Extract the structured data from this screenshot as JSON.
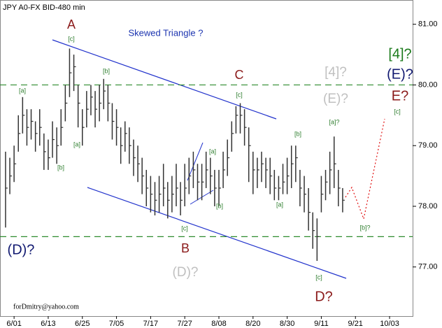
{
  "chart_data": {
    "type": "ohlc",
    "title": "JPY A0-FX BID-480 min",
    "color": "#333333",
    "high": [
      78.9,
      78.8,
      79.0,
      79.5,
      79.8,
      79.6,
      79.6,
      79.4,
      79.6,
      79.2,
      79.1,
      79.4,
      79.3,
      79.6,
      80.0,
      80.6,
      80.5,
      80.0,
      79.6,
      79.9,
      80.0,
      79.9,
      80.0,
      80.1,
      80.0,
      79.7,
      79.6,
      79.3,
      79.4,
      79.3,
      79.1,
      79.0,
      78.8,
      78.6,
      78.5,
      78.4,
      78.5,
      78.7,
      78.4,
      78.5,
      78.7,
      78.4,
      78.7,
      78.8,
      78.9,
      78.7,
      78.7,
      78.9,
      78.8,
      78.6,
      78.6,
      78.9,
      79.1,
      79.4,
      79.65,
      79.7,
      79.6,
      79.3,
      78.9,
      78.8,
      78.9,
      78.8,
      78.8,
      78.6,
      78.5,
      78.7,
      78.8,
      79.0,
      79.0,
      78.6,
      78.5,
      78.3,
      77.9,
      77.8,
      78.5,
      78.6,
      78.9,
      79.15,
      78.6,
      78.3
    ],
    "low": [
      77.65,
      78.2,
      78.4,
      78.9,
      79.2,
      79.0,
      79.1,
      78.9,
      79.0,
      78.6,
      78.6,
      78.8,
      78.7,
      79.0,
      79.4,
      79.8,
      79.9,
      79.3,
      79.0,
      79.3,
      79.5,
      79.3,
      79.4,
      79.6,
      79.4,
      79.1,
      79.0,
      78.7,
      78.9,
      78.7,
      78.5,
      78.4,
      78.2,
      78.0,
      77.9,
      77.85,
      77.9,
      78.0,
      77.8,
      77.9,
      78.0,
      77.85,
      78.0,
      78.2,
      78.3,
      78.1,
      78.1,
      78.3,
      78.2,
      78.0,
      78.0,
      78.3,
      78.5,
      78.9,
      79.2,
      79.2,
      79.0,
      78.4,
      78.2,
      78.3,
      78.4,
      78.3,
      78.2,
      78.1,
      78.1,
      78.2,
      78.2,
      78.3,
      78.4,
      78.0,
      77.9,
      77.6,
      77.3,
      77.1,
      77.9,
      78.1,
      78.2,
      78.3,
      78.0,
      77.9
    ],
    "close": [
      78.3,
      78.5,
      78.7,
      79.2,
      79.5,
      79.3,
      79.4,
      79.2,
      79.3,
      78.9,
      78.8,
      79.1,
      79.0,
      79.3,
      79.7,
      80.2,
      80.3,
      79.7,
      79.3,
      79.6,
      79.8,
      79.6,
      79.7,
      79.9,
      79.7,
      79.4,
      79.3,
      79.0,
      79.2,
      79.0,
      78.8,
      78.7,
      78.5,
      78.3,
      78.2,
      78.1,
      78.2,
      78.3,
      78.1,
      78.2,
      78.3,
      78.1,
      78.3,
      78.5,
      78.6,
      78.4,
      78.4,
      78.6,
      78.5,
      78.3,
      78.3,
      78.6,
      78.8,
      79.2,
      79.5,
      79.5,
      79.3,
      79.0,
      78.6,
      78.6,
      78.7,
      78.6,
      78.5,
      78.3,
      78.3,
      78.4,
      78.5,
      78.7,
      78.8,
      78.3,
      78.2,
      77.9,
      77.6,
      77.5,
      78.2,
      78.4,
      78.6,
      78.7,
      78.3,
      78.1
    ],
    "xlim": [
      -1.3,
      95.4
    ],
    "xticks": [
      {
        "value": 2,
        "label": "6/01"
      },
      {
        "value": 10,
        "label": "6/13"
      },
      {
        "value": 18,
        "label": "6/25"
      },
      {
        "value": 26,
        "label": "7/05"
      },
      {
        "value": 34,
        "label": "7/17"
      },
      {
        "value": 42,
        "label": "7/27"
      },
      {
        "value": 50,
        "label": "8/08"
      },
      {
        "value": 58,
        "label": "8/20"
      },
      {
        "value": 66,
        "label": "8/30"
      },
      {
        "value": 74,
        "label": "9/11"
      },
      {
        "value": 82,
        "label": "9/21"
      },
      {
        "value": 90,
        "label": "10/03"
      }
    ],
    "ylim": [
      76.19,
      81.4
    ],
    "yticks": [
      {
        "value": 77,
        "label": "77.00"
      },
      {
        "value": 78,
        "label": "78.00"
      },
      {
        "value": 79,
        "label": "79.00"
      },
      {
        "value": 80,
        "label": "80.00"
      },
      {
        "value": 81,
        "label": "81.00"
      }
    ],
    "hlines": [
      80,
      77.5
    ],
    "hline_color": "#2e8b2e",
    "annotations": [
      {
        "text": "Skewed Triangle ?",
        "color": "#1c34b0"
      },
      {
        "text": "A",
        "color": "#8b1a1a"
      },
      {
        "text": "[c]",
        "color": "#2e7d2e"
      },
      {
        "text": "[b]",
        "color": "#2e7d2e"
      },
      {
        "text": "[a]",
        "color": "#2e7d2e"
      },
      {
        "text": "[b]",
        "color": "#2e7d2e"
      },
      {
        "text": "[a]",
        "color": "#2e7d2e"
      },
      {
        "text": "C",
        "color": "#8b1a1a"
      },
      {
        "text": "[c]",
        "color": "#2e7d2e"
      },
      {
        "text": "[4]?",
        "color": "#c0c0c0"
      },
      {
        "text": "(E)?",
        "color": "#c0c0c0"
      },
      {
        "text": "[4]?",
        "color": "#1a7a1a"
      },
      {
        "text": "(E)?",
        "color": "#101870"
      },
      {
        "text": "E?",
        "color": "#8b1a1a"
      },
      {
        "text": "[c]",
        "color": "#2e7d2e"
      },
      {
        "text": "[b]",
        "color": "#2e7d2e"
      },
      {
        "text": "[a]?",
        "color": "#2e7d2e"
      },
      {
        "text": "[a]",
        "color": "#2e7d2e"
      },
      {
        "text": "[b]",
        "color": "#2e7d2e"
      },
      {
        "text": "[a]",
        "color": "#2e7d2e"
      },
      {
        "text": "[c]",
        "color": "#2e7d2e"
      },
      {
        "text": "B",
        "color": "#8b1a1a"
      },
      {
        "text": "(D)?",
        "color": "#c0c0c0"
      },
      {
        "text": "(D)?",
        "color": "#101870"
      },
      {
        "text": "[c]",
        "color": "#2e7d2e"
      },
      {
        "text": "D?",
        "color": "#8b1a1a"
      },
      {
        "text": "[b]?",
        "color": "#2e7d2e"
      },
      {
        "text": "forDmitry@yahoo.com",
        "color": "#000000"
      }
    ]
  }
}
